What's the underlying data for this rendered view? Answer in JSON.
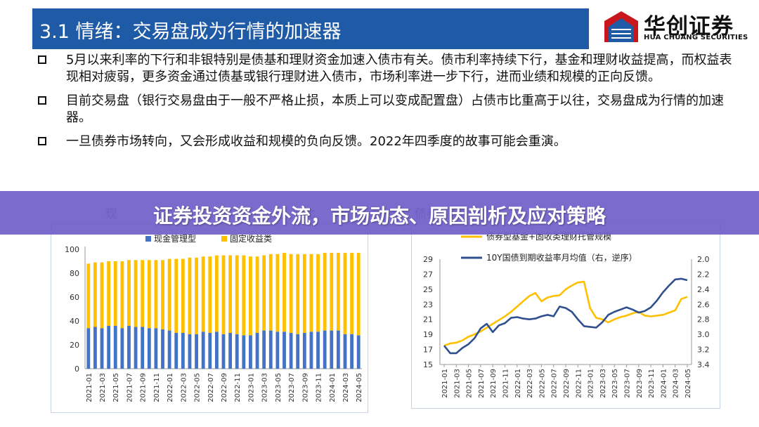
{
  "header": {
    "title": "3.1 情绪：交易盘成为行情的加速器",
    "logo_cn": "华创证券",
    "logo_en": "HUA CHUANG SECURITIES"
  },
  "bullets": [
    "5月以来利率的下行和非银特别是债基和理财资金加速入债市有关。债市利率持续下行，基金和理财收益提高，而权益表现相对疲弱，更多资金通过债基或银行理财进入债市，市场利率进一步下行，进而业绩和规模的正向反馈。",
    "目前交易盘（银行交易盘由于一般不严格止损，本质上可以变成配置盘）占债市比重高于以往，交易盘成为行情的加速器。",
    "一旦债券市场转向，又会形成收益和规模的负向反馈。2022年四季度的故事可能会重演。"
  ],
  "banner": {
    "text": "证券投资资金外流，市场动态、原因剖析及应对策略"
  },
  "peek_left": "现",
  "peek_mid": "比",
  "peek_right": "债券",
  "colors": {
    "title_bar": "#1f5aa6",
    "cash": "#4472c4",
    "fixed": "#ffc000",
    "line_yellow": "#ffc000",
    "line_blue": "#2f4f8f",
    "banner": "#7060c8"
  },
  "chart_data": [
    {
      "type": "bar",
      "stacked": true,
      "legend": [
        "现金管理型",
        "固定收益类"
      ],
      "ylim": [
        0,
        100
      ],
      "yticks": [
        0,
        20,
        40,
        60,
        80,
        100
      ],
      "grid": false,
      "x": [
        "2021-01",
        "2021-02",
        "2021-03",
        "2021-04",
        "2021-05",
        "2021-06",
        "2021-07",
        "2021-08",
        "2021-09",
        "2021-10",
        "2021-11",
        "2021-12",
        "2022-01",
        "2022-02",
        "2022-03",
        "2022-04",
        "2022-05",
        "2022-06",
        "2022-07",
        "2022-08",
        "2022-09",
        "2022-10",
        "2022-11",
        "2022-12",
        "2023-01",
        "2023-02",
        "2023-03",
        "2023-04",
        "2023-05",
        "2023-06",
        "2023-07",
        "2023-08",
        "2023-09",
        "2023-10",
        "2023-11",
        "2023-12",
        "2024-01",
        "2024-02",
        "2024-03",
        "2024-04",
        "2024-05"
      ],
      "xticks": [
        "2021-01",
        "2021-03",
        "2021-05",
        "2021-07",
        "2021-09",
        "2021-11",
        "2022-01",
        "2022-03",
        "2022-05",
        "2022-07",
        "2022-09",
        "2022-11",
        "2023-01",
        "2023-03",
        "2023-05",
        "2023-07",
        "2023-09",
        "2023-11",
        "2024-01",
        "2024-03",
        "2024-05"
      ],
      "series": [
        {
          "name": "现金管理型",
          "values": [
            34,
            35,
            34,
            36,
            36,
            34,
            36,
            35,
            35,
            34,
            34,
            33,
            32,
            30,
            30,
            29,
            29,
            31,
            30,
            31,
            29,
            30,
            29,
            28,
            28,
            30,
            32,
            32,
            31,
            31,
            30,
            29,
            30,
            31,
            31,
            32,
            32,
            32,
            29,
            29,
            28
          ]
        },
        {
          "name": "固定收益类",
          "values": [
            54,
            54,
            55,
            54,
            54,
            56,
            55,
            56,
            56,
            57,
            57,
            58,
            60,
            62,
            62,
            64,
            64,
            63,
            64,
            64,
            66,
            65,
            66,
            67,
            66,
            64,
            63,
            64,
            65,
            66,
            66,
            67,
            66,
            65,
            65,
            65,
            65,
            65,
            68,
            68,
            69
          ]
        }
      ]
    },
    {
      "type": "line",
      "legend": [
        "债券型基金+固收类理财托管规模",
        "10Y国债到期收益率月均值（右，逆序）"
      ],
      "ylim": [
        15,
        29
      ],
      "yticks": [
        15,
        17,
        19,
        21,
        23,
        25,
        27,
        29
      ],
      "y2lim": [
        3.4,
        2.0
      ],
      "y2ticks": [
        "2.0",
        "2.2",
        "2.4",
        "2.6",
        "2.8",
        "3.0",
        "3.2",
        "3.4"
      ],
      "grid": false,
      "xticks": [
        "2021-01",
        "2021-03",
        "2021-05",
        "2021-07",
        "2021-09",
        "2021-11",
        "2022-01",
        "2022-03",
        "2022-05",
        "2022-07",
        "2022-09",
        "2022-11",
        "2023-01",
        "2023-03",
        "2023-05",
        "2023-07",
        "2023-09",
        "2023-11",
        "2024-01",
        "2024-03",
        "2024-05"
      ],
      "series": [
        {
          "name": "债券型基金+固收类理财托管规模",
          "axis": "left",
          "values": [
            17.5,
            17.8,
            17.9,
            18.2,
            18.7,
            19.0,
            19.4,
            19.9,
            20.4,
            20.9,
            21.4,
            22.0,
            22.7,
            23.4,
            24.1,
            24.5,
            23.4,
            23.9,
            24.1,
            24.2,
            25.0,
            25.5,
            25.9,
            26.0,
            22.5,
            21.2,
            21.0,
            20.6,
            21.0,
            21.3,
            21.5,
            21.8,
            22.0,
            21.5,
            21.4,
            21.5,
            21.6,
            21.9,
            22.2,
            23.7,
            24.0
          ]
        },
        {
          "name": "10Y国债到期收益率月均值（右，逆序）",
          "axis": "right",
          "values": [
            3.15,
            3.25,
            3.25,
            3.18,
            3.13,
            3.05,
            2.92,
            2.86,
            2.97,
            2.88,
            2.85,
            2.78,
            2.77,
            2.79,
            2.8,
            2.79,
            2.76,
            2.74,
            2.76,
            2.63,
            2.65,
            2.7,
            2.8,
            2.89,
            2.9,
            2.91,
            2.84,
            2.74,
            2.7,
            2.67,
            2.64,
            2.67,
            2.71,
            2.69,
            2.64,
            2.55,
            2.44,
            2.35,
            2.27,
            2.26,
            2.28
          ]
        }
      ]
    }
  ]
}
